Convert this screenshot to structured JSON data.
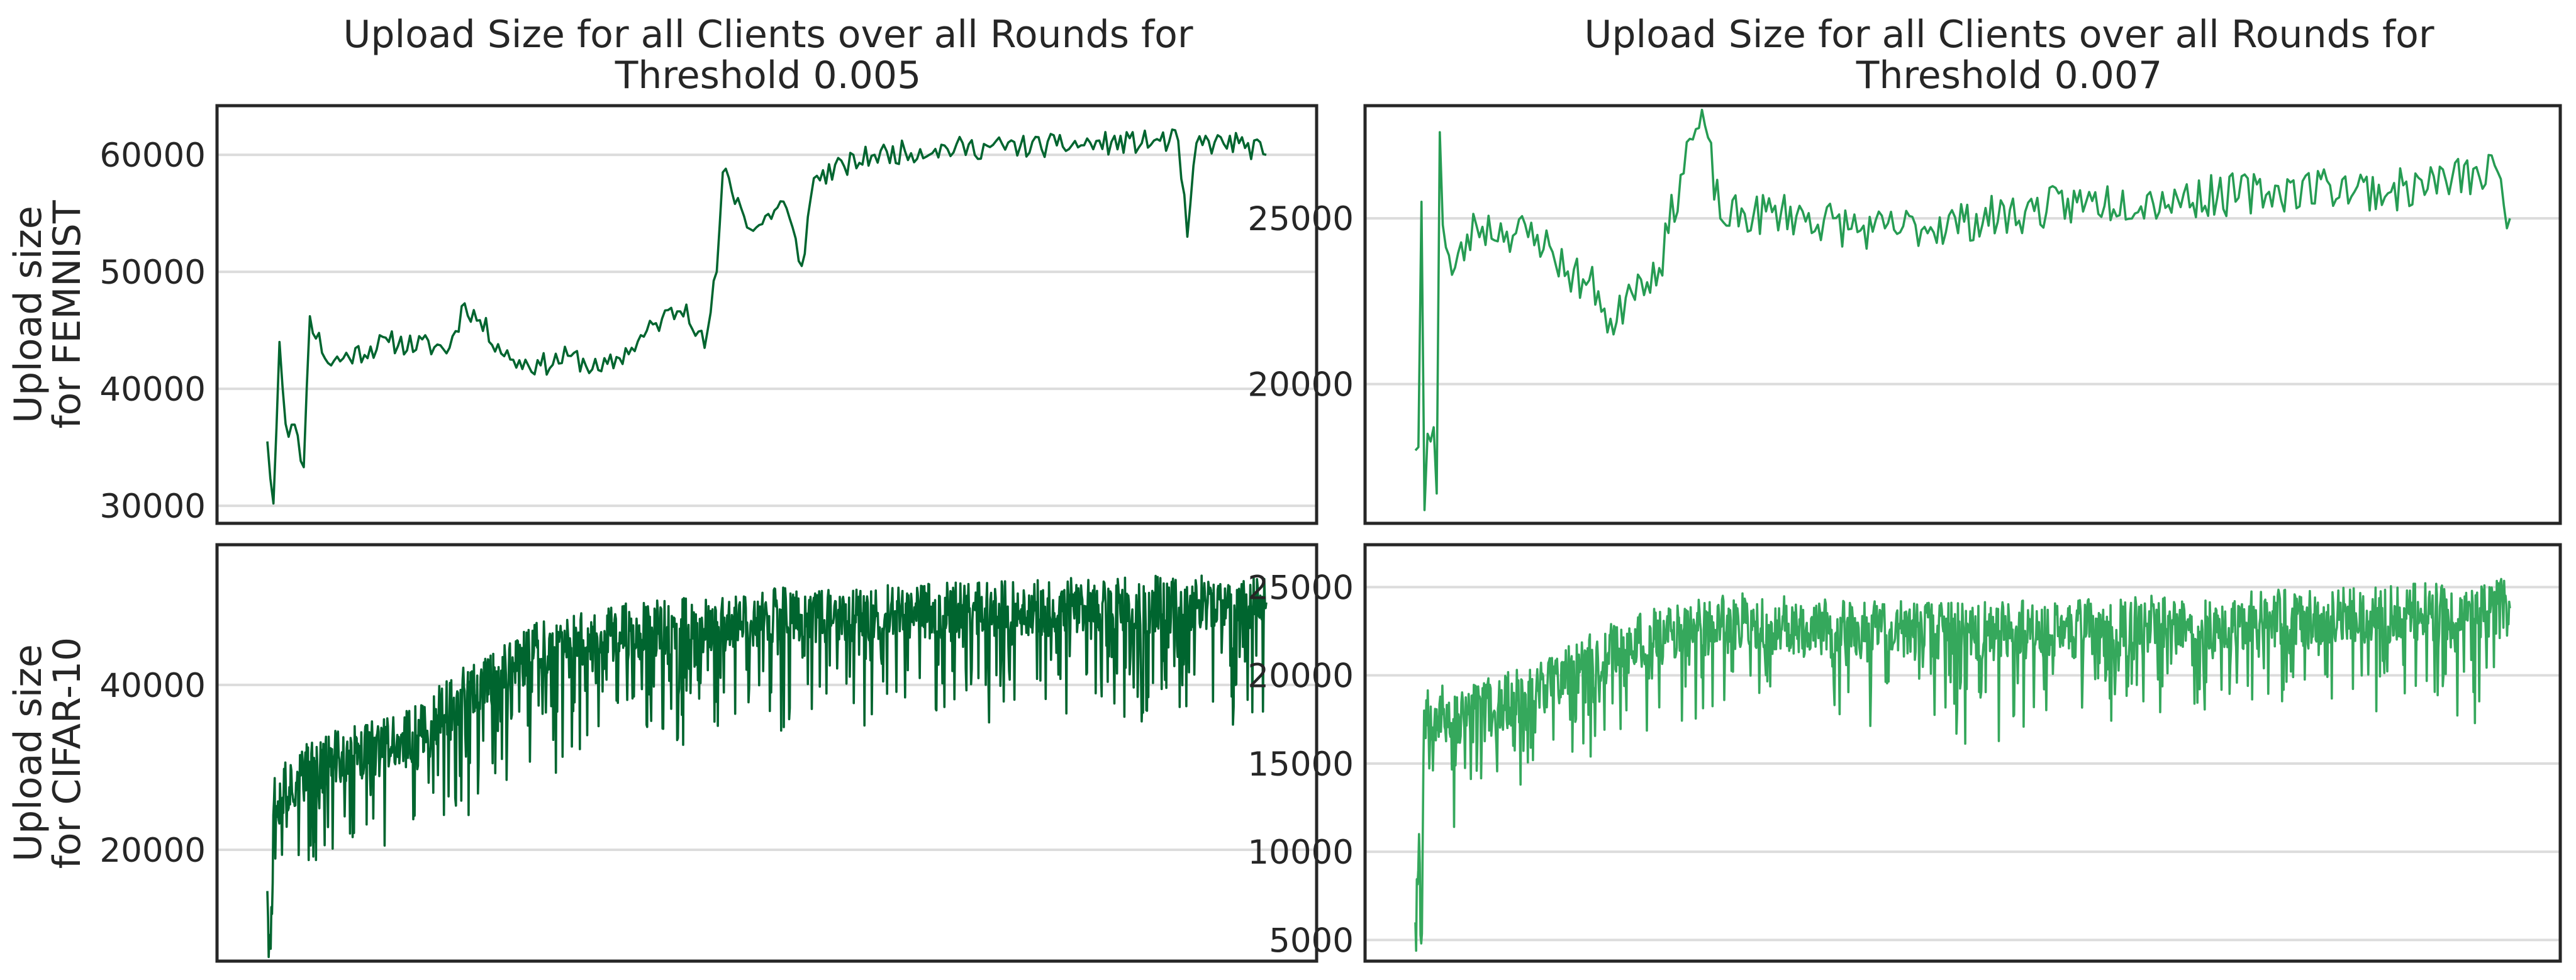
{
  "colors": {
    "dark_green": "#00652f",
    "mid_green": "#269c53",
    "light_green": "#35a85c",
    "axis": "#262626",
    "grid": "#dcdcdc"
  },
  "column_titles": [
    [
      "Upload Size for all Clients over all Rounds for",
      "Threshold 0.005"
    ],
    [
      "Upload Size for all Clients over all Rounds for",
      "Threshold 0.007"
    ]
  ],
  "row_labels": [
    [
      "Upload size",
      "for FEMNIST"
    ],
    [
      "Upload size",
      "for CIFAR-10"
    ]
  ],
  "chart_data": [
    {
      "type": "line",
      "title": "Upload Size for all Clients over all Rounds for Threshold 0.005",
      "ylabel": "Upload size for FEMNIST",
      "ylim": [
        28500,
        64200
      ],
      "yticks": [
        30000,
        40000,
        50000,
        60000
      ],
      "grid": "horizontal",
      "color": "#00652f",
      "n_points": 330,
      "anchors": [
        [
          0,
          35500
        ],
        [
          2,
          30200
        ],
        [
          4,
          44000
        ],
        [
          6,
          37000
        ],
        [
          10,
          36000
        ],
        [
          12,
          33300
        ],
        [
          14,
          46200
        ],
        [
          20,
          42200
        ],
        [
          40,
          44000
        ],
        [
          60,
          43500
        ],
        [
          65,
          47300
        ],
        [
          80,
          42500
        ],
        [
          90,
          42000
        ],
        [
          100,
          42800
        ],
        [
          110,
          41500
        ],
        [
          120,
          43500
        ],
        [
          130,
          46000
        ],
        [
          138,
          47200
        ],
        [
          144,
          43500
        ],
        [
          148,
          50000
        ],
        [
          150,
          58500
        ],
        [
          160,
          53500
        ],
        [
          170,
          56000
        ],
        [
          176,
          50500
        ],
        [
          180,
          58000
        ],
        [
          190,
          59000
        ],
        [
          200,
          60000
        ],
        [
          220,
          60500
        ],
        [
          260,
          60800
        ],
        [
          300,
          61200
        ],
        [
          303,
          53000
        ],
        [
          306,
          61000
        ],
        [
          320,
          61000
        ],
        [
          329,
          60000
        ]
      ],
      "noise": 1000,
      "seed": 11
    },
    {
      "type": "line",
      "title": "Upload Size for all Clients over all Rounds for Threshold 0.007",
      "ylabel": "",
      "ylim": [
        15800,
        28400
      ],
      "yticks": [
        20000,
        25000
      ],
      "grid": "horizontal",
      "color": "#269c53",
      "n_points": 360,
      "anchors": [
        [
          0,
          18000
        ],
        [
          1,
          18100
        ],
        [
          2,
          25500
        ],
        [
          3,
          16200
        ],
        [
          4,
          18500
        ],
        [
          6,
          18700
        ],
        [
          7,
          16700
        ],
        [
          8,
          27600
        ],
        [
          9,
          24800
        ],
        [
          12,
          23300
        ],
        [
          20,
          24800
        ],
        [
          30,
          24600
        ],
        [
          40,
          24500
        ],
        [
          50,
          23400
        ],
        [
          60,
          22800
        ],
        [
          65,
          21500
        ],
        [
          70,
          23000
        ],
        [
          80,
          23500
        ],
        [
          90,
          27400
        ],
        [
          95,
          27800
        ],
        [
          100,
          25000
        ],
        [
          120,
          25200
        ],
        [
          150,
          24600
        ],
        [
          180,
          24900
        ],
        [
          200,
          25200
        ],
        [
          220,
          25500
        ],
        [
          250,
          25600
        ],
        [
          280,
          25800
        ],
        [
          300,
          26000
        ],
        [
          320,
          25800
        ],
        [
          340,
          26200
        ],
        [
          355,
          26400
        ],
        [
          359,
          25000
        ]
      ],
      "noise": 650,
      "seed": 23
    },
    {
      "type": "line",
      "title": "",
      "ylabel": "Upload size for CIFAR-10",
      "ylim": [
        6500,
        57000
      ],
      "yticks": [
        20000,
        40000
      ],
      "grid": "horizontal",
      "color": "#00652f",
      "n_points": 1500,
      "anchors": [
        [
          0,
          15000
        ],
        [
          5,
          8000
        ],
        [
          10,
          26000
        ],
        [
          50,
          29000
        ],
        [
          100,
          31000
        ],
        [
          200,
          33000
        ],
        [
          300,
          39000
        ],
        [
          400,
          44000
        ],
        [
          500,
          46000
        ],
        [
          600,
          47000
        ],
        [
          800,
          48500
        ],
        [
          1000,
          49000
        ],
        [
          1200,
          49500
        ],
        [
          1499,
          50000
        ]
      ],
      "noise": 3500,
      "spike_drop": 9000,
      "spike_rate": 0.18,
      "seed": 37
    },
    {
      "type": "line",
      "title": "",
      "ylabel": "",
      "ylim": [
        3800,
        27400
      ],
      "yticks": [
        5000,
        10000,
        15000,
        20000,
        25000
      ],
      "grid": "horizontal",
      "color": "#35a85c",
      "n_points": 1500,
      "anchors": [
        [
          0,
          6000
        ],
        [
          5,
          11000
        ],
        [
          8,
          4800
        ],
        [
          12,
          18000
        ],
        [
          60,
          17500
        ],
        [
          150,
          19000
        ],
        [
          250,
          21000
        ],
        [
          350,
          22500
        ],
        [
          450,
          23000
        ],
        [
          600,
          22500
        ],
        [
          800,
          22500
        ],
        [
          1000,
          22800
        ],
        [
          1200,
          23200
        ],
        [
          1499,
          23800
        ]
      ],
      "noise": 1700,
      "spike_drop": 3500,
      "spike_rate": 0.15,
      "seed": 53
    }
  ]
}
